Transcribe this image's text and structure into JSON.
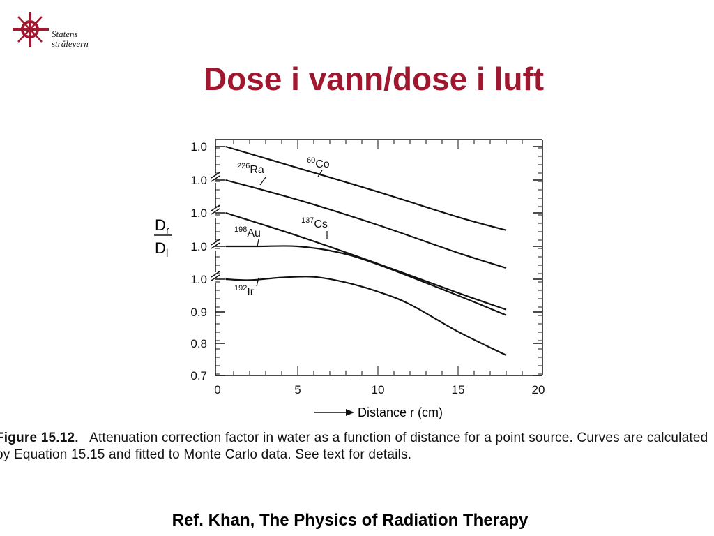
{
  "slide": {
    "title": "Dose i vann/dose i luft",
    "logo_lines": [
      "Statens",
      "strålevern"
    ],
    "reference": "Ref. Khan, The Physics of Radiation Therapy"
  },
  "caption": {
    "figure_label": "Figure 15.12.",
    "text": "Attenuation correction factor in water as a function of distance for a point source. Curves are calculated by Equation 15.15 and fitted to Monte Carlo data. See text for details."
  },
  "chart_data": {
    "type": "line",
    "xlabel": "Distance r (cm)",
    "ylabel": {
      "numerator": "D",
      "numerator_sub": "r",
      "denominator": "D",
      "denominator_sub": "l"
    },
    "xlim": [
      0,
      20
    ],
    "x_ticks": [
      "0",
      "5",
      "10",
      "15",
      "20"
    ],
    "y_tick_labels_lower": [
      "1.0",
      "0.9",
      "0.8",
      "0.7"
    ],
    "y_origin_labels": [
      "1.0",
      "1.0",
      "1.0",
      "1.0"
    ],
    "grid": false,
    "legend": "none (curves labeled directly)",
    "note": "Curves are vertically offset; each curve starts at its own broken-axis 1.0 origin. Scale: 0.1 per major tick.",
    "series": [
      {
        "name": "Co",
        "isotope_mass": "60",
        "y_origin": "1.0",
        "x": [
          0.5,
          5,
          10,
          15,
          18
        ],
        "y": [
          1.0,
          0.935,
          0.862,
          0.785,
          0.745
        ]
      },
      {
        "name": "Ra",
        "isotope_mass": "226",
        "y_origin": "1.0",
        "x": [
          0.5,
          5,
          10,
          15,
          18
        ],
        "y": [
          1.0,
          0.94,
          0.863,
          0.778,
          0.732
        ]
      },
      {
        "name": "Cs",
        "isotope_mass": "137",
        "y_origin": "1.0",
        "x": [
          0.5,
          5,
          10,
          15,
          18
        ],
        "y": [
          1.0,
          0.93,
          0.845,
          0.756,
          0.705
        ]
      },
      {
        "name": "Au",
        "isotope_mass": "198",
        "y_origin": "1.0",
        "x": [
          0.5,
          2.5,
          5,
          7.5,
          10,
          15,
          18
        ],
        "y": [
          1.0,
          1.0,
          1.0,
          0.982,
          0.945,
          0.85,
          0.79
        ]
      },
      {
        "name": "Ir",
        "isotope_mass": "192",
        "y_origin": "1.0",
        "x": [
          0.5,
          2,
          4,
          6,
          8,
          10,
          12,
          15,
          18
        ],
        "y": [
          1.0,
          0.997,
          1.005,
          1.007,
          0.99,
          0.962,
          0.923,
          0.84,
          0.768
        ]
      }
    ]
  }
}
